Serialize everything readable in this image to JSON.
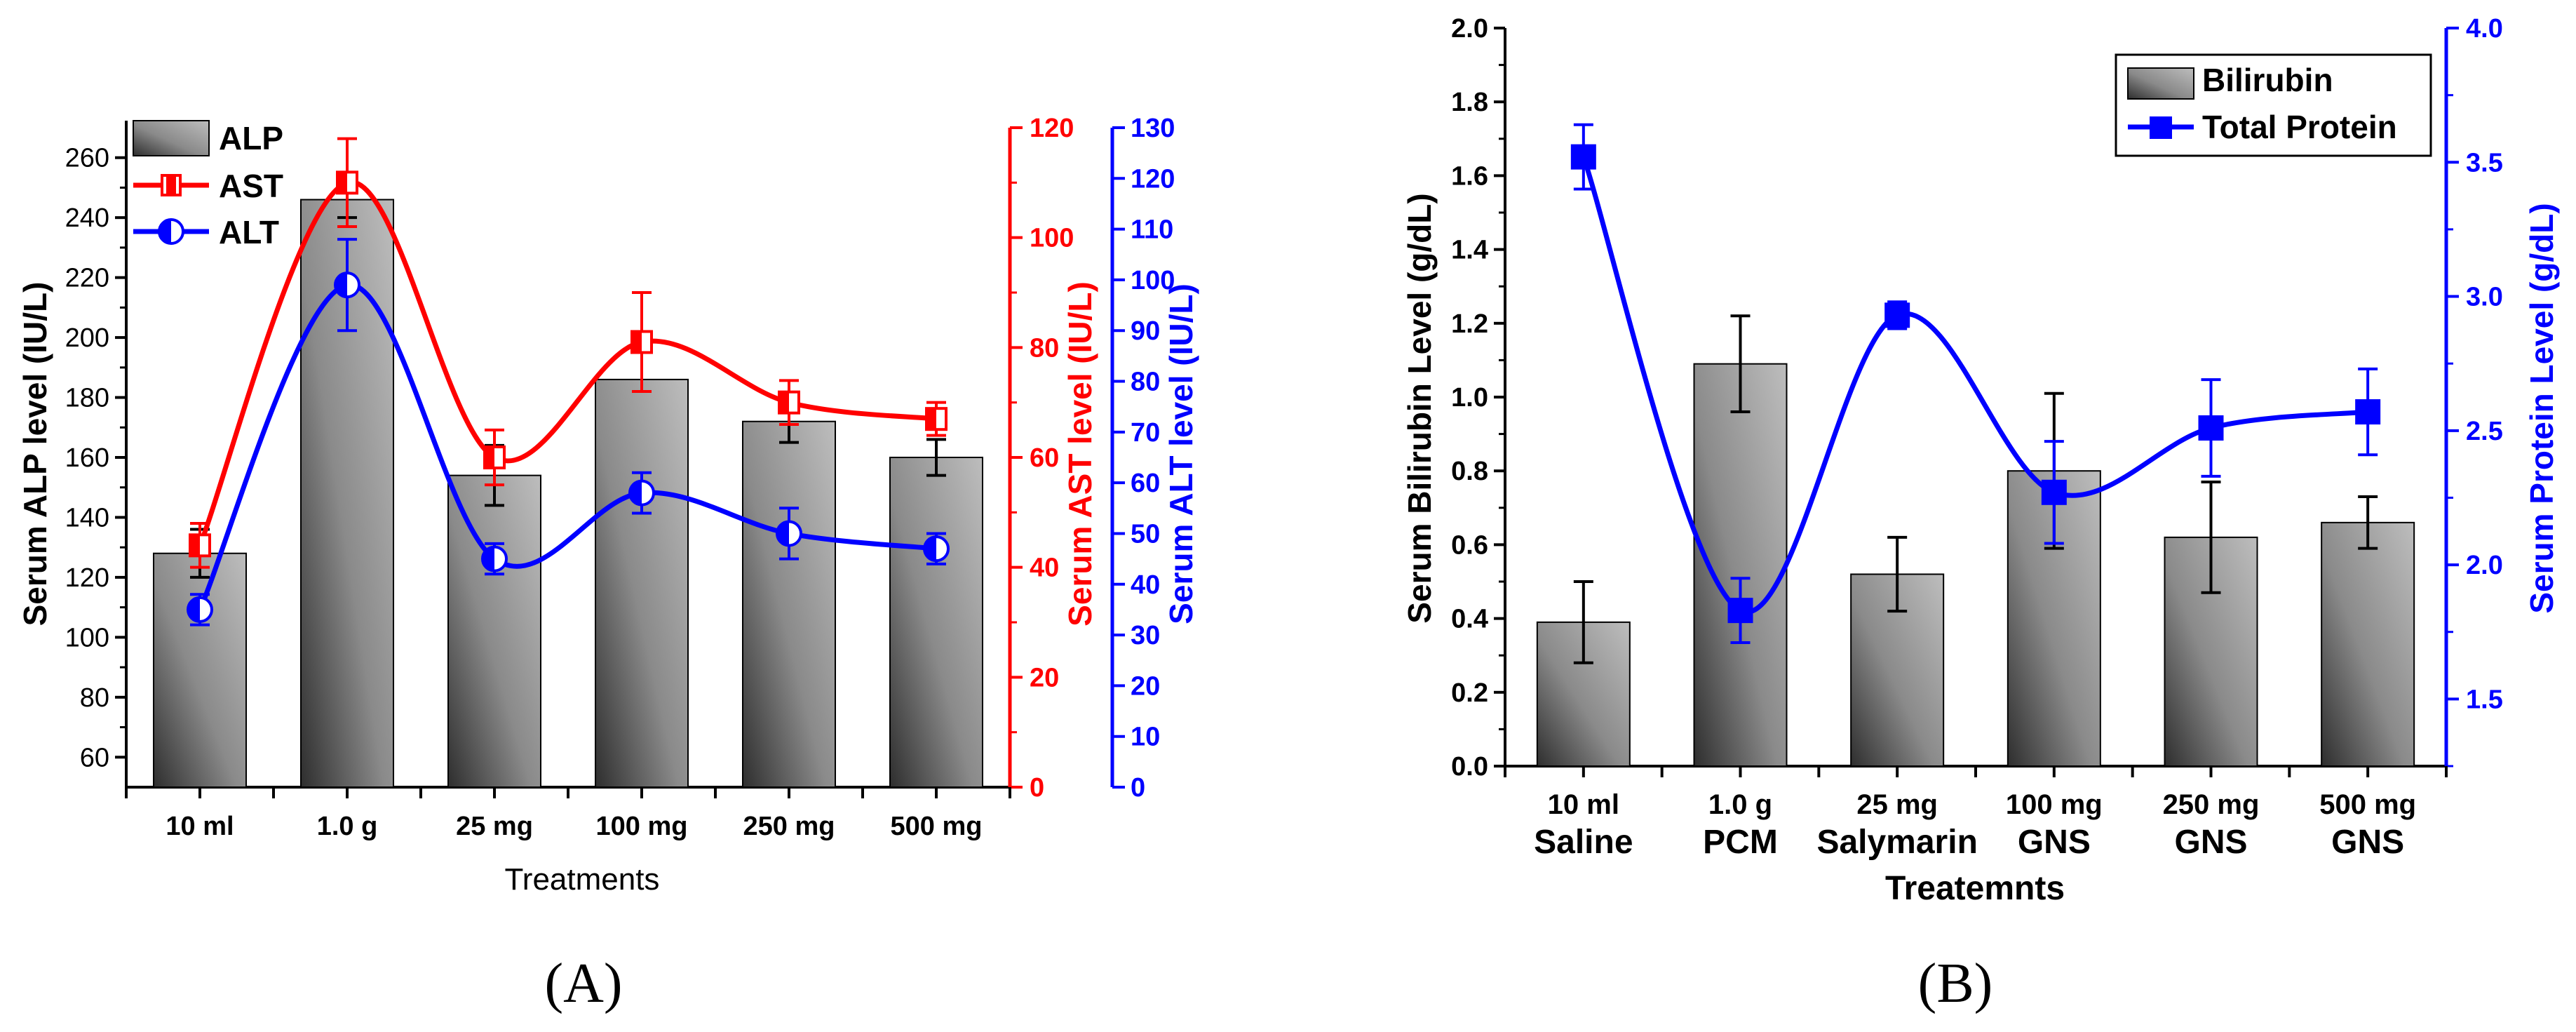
{
  "colors": {
    "bar_dark": "#3a3a3a",
    "bar_light": "#b0b0b0",
    "ast": "#ff0000",
    "alt": "#0000ff",
    "protein": "#0000ff",
    "axis": "#000000"
  },
  "chart_data": [
    {
      "panel": "(A)",
      "type": "bar",
      "xlabel": "Treatments",
      "categories": [
        "10 ml",
        "1.0 g",
        "25 mg",
        "100 mg",
        "250 mg",
        "500 mg"
      ],
      "series": [
        {
          "name": "ALP",
          "type": "bar",
          "axis": "left",
          "values": [
            128,
            246,
            154,
            186,
            172,
            160
          ],
          "errors": [
            8,
            6,
            10,
            0,
            7,
            6
          ]
        },
        {
          "name": "AST",
          "type": "line",
          "axis": "right1",
          "values": [
            44,
            110,
            60,
            81,
            70,
            67
          ],
          "errors": [
            4,
            8,
            5,
            9,
            4,
            3
          ]
        },
        {
          "name": "ALT",
          "type": "line",
          "axis": "right2",
          "values": [
            35,
            99,
            45,
            58,
            50,
            47
          ],
          "errors": [
            3,
            9,
            3,
            4,
            5,
            3
          ]
        }
      ],
      "left_axis": {
        "label": "Serum ALP level (IU/L)",
        "range": [
          50,
          270
        ],
        "ticks": [
          60,
          80,
          100,
          120,
          140,
          160,
          180,
          200,
          220,
          240,
          260
        ]
      },
      "right1_axis": {
        "label": "Serum AST level (IU/L)",
        "range": [
          0,
          120
        ],
        "ticks": [
          0,
          20,
          40,
          60,
          80,
          100,
          120
        ]
      },
      "right2_axis": {
        "label": "Serum ALT level (IU/L)",
        "range": [
          0,
          130
        ],
        "ticks": [
          0,
          10,
          20,
          30,
          40,
          50,
          60,
          70,
          80,
          90,
          100,
          110,
          120,
          130
        ]
      },
      "legend": [
        {
          "name": "ALP"
        },
        {
          "name": "AST"
        },
        {
          "name": "ALT"
        }
      ]
    },
    {
      "panel": "(B)",
      "type": "bar",
      "xlabel": "Treatemnts",
      "categories": [
        {
          "dose": "10 ml",
          "group": "Saline"
        },
        {
          "dose": "1.0 g",
          "group": "PCM"
        },
        {
          "dose": "25 mg",
          "group": "Salymarin"
        },
        {
          "dose": "100 mg",
          "group": "GNS"
        },
        {
          "dose": "250 mg",
          "group": "GNS"
        },
        {
          "dose": "500 mg",
          "group": "GNS"
        }
      ],
      "series": [
        {
          "name": "Bilirubin",
          "type": "bar",
          "axis": "left",
          "values": [
            0.39,
            1.09,
            0.52,
            0.8,
            0.62,
            0.66
          ],
          "errors": [
            0.11,
            0.13,
            0.1,
            0.21,
            0.15,
            0.07
          ]
        },
        {
          "name": "Total Protein",
          "type": "line",
          "axis": "right",
          "values": [
            3.52,
            1.83,
            2.93,
            2.27,
            2.51,
            2.57
          ],
          "errors": [
            0.12,
            0.12,
            0.05,
            0.19,
            0.18,
            0.16
          ]
        }
      ],
      "left_axis": {
        "label": "Serum Bilirubin Level (g/dL)",
        "range": [
          0,
          2.0
        ],
        "ticks": [
          "0.0",
          "0.2",
          "0.4",
          "0.6",
          "0.8",
          "1.0",
          "1.2",
          "1.4",
          "1.6",
          "1.8",
          "2.0"
        ]
      },
      "right_axis": {
        "label": "Serum Protein Level (g/dL)",
        "range": [
          1.25,
          4.0
        ],
        "ticks": [
          "1.5",
          "2.0",
          "2.5",
          "3.0",
          "3.5",
          "4.0"
        ]
      },
      "legend": [
        {
          "name": "Bilirubin"
        },
        {
          "name": "Total Protein"
        }
      ]
    }
  ]
}
